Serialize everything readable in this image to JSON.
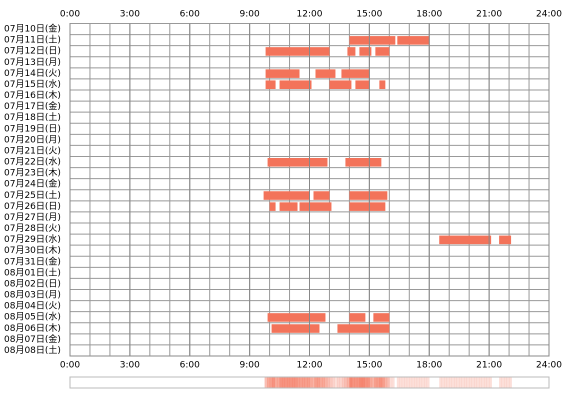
{
  "chart_data": {
    "type": "timeline",
    "color": "#f3735a",
    "xlim": [
      0,
      24
    ],
    "xticks": [
      {
        "value": 0,
        "label": "0:00"
      },
      {
        "value": 3,
        "label": "3:00"
      },
      {
        "value": 6,
        "label": "6:00"
      },
      {
        "value": 9,
        "label": "9:00"
      },
      {
        "value": 12,
        "label": "12:00"
      },
      {
        "value": 15,
        "label": "15:00"
      },
      {
        "value": 18,
        "label": "18:00"
      },
      {
        "value": 21,
        "label": "21:00"
      },
      {
        "value": 24,
        "label": "24:00"
      }
    ],
    "rows": [
      {
        "label": "07月10日(金)",
        "segments": []
      },
      {
        "label": "07月11日(土)",
        "segments": [
          [
            14.0,
            16.3
          ],
          [
            16.4,
            18.0
          ]
        ]
      },
      {
        "label": "07月12日(日)",
        "segments": [
          [
            9.8,
            13.0
          ],
          [
            13.9,
            14.3
          ],
          [
            14.5,
            15.1
          ],
          [
            15.3,
            16.0
          ]
        ]
      },
      {
        "label": "07月13日(月)",
        "segments": []
      },
      {
        "label": "07月14日(火)",
        "segments": [
          [
            9.8,
            11.5
          ],
          [
            12.3,
            13.3
          ],
          [
            13.6,
            15.0
          ]
        ]
      },
      {
        "label": "07月15日(水)",
        "segments": [
          [
            9.8,
            10.3
          ],
          [
            10.5,
            12.1
          ],
          [
            13.0,
            14.1
          ],
          [
            14.3,
            15.0
          ],
          [
            15.5,
            15.8
          ]
        ]
      },
      {
        "label": "07月16日(木)",
        "segments": []
      },
      {
        "label": "07月17日(金)",
        "segments": []
      },
      {
        "label": "07月18日(土)",
        "segments": []
      },
      {
        "label": "07月19日(日)",
        "segments": []
      },
      {
        "label": "07月20日(月)",
        "segments": []
      },
      {
        "label": "07月21日(火)",
        "segments": []
      },
      {
        "label": "07月22日(水)",
        "segments": [
          [
            9.9,
            12.9
          ],
          [
            13.8,
            15.6
          ]
        ]
      },
      {
        "label": "07月23日(木)",
        "segments": []
      },
      {
        "label": "07月24日(金)",
        "segments": []
      },
      {
        "label": "07月25日(土)",
        "segments": [
          [
            9.7,
            12.0
          ],
          [
            12.2,
            13.0
          ],
          [
            14.0,
            15.9
          ]
        ]
      },
      {
        "label": "07月26日(日)",
        "segments": [
          [
            10.0,
            10.3
          ],
          [
            10.5,
            11.4
          ],
          [
            11.5,
            11.8
          ],
          [
            11.8,
            13.1
          ],
          [
            14.0,
            15.8
          ]
        ]
      },
      {
        "label": "07月27日(月)",
        "segments": []
      },
      {
        "label": "07月28日(火)",
        "segments": []
      },
      {
        "label": "07月29日(水)",
        "segments": [
          [
            18.5,
            21.1
          ],
          [
            21.5,
            22.1
          ]
        ]
      },
      {
        "label": "07月30日(木)",
        "segments": []
      },
      {
        "label": "07月31日(金)",
        "segments": []
      },
      {
        "label": "08月01日(土)",
        "segments": []
      },
      {
        "label": "08月02日(日)",
        "segments": []
      },
      {
        "label": "08月03日(月)",
        "segments": []
      },
      {
        "label": "08月04日(火)",
        "segments": []
      },
      {
        "label": "08月05日(水)",
        "segments": [
          [
            9.9,
            12.8
          ],
          [
            14.0,
            14.8
          ],
          [
            15.2,
            16.0
          ]
        ]
      },
      {
        "label": "08月06日(木)",
        "segments": [
          [
            10.1,
            12.5
          ],
          [
            13.4,
            16.0
          ]
        ]
      },
      {
        "label": "08月07日(金)",
        "segments": []
      },
      {
        "label": "08月08日(土)",
        "segments": []
      }
    ]
  }
}
